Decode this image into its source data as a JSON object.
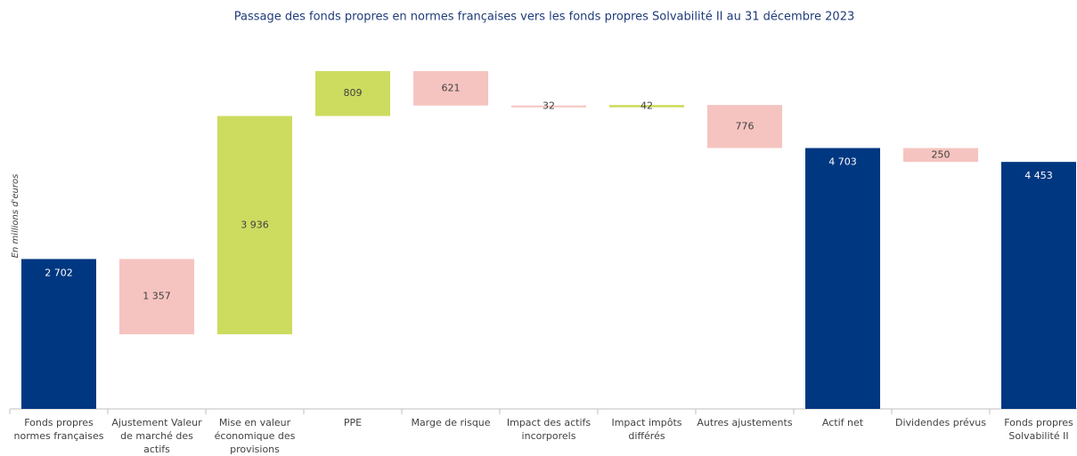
{
  "chart_data": {
    "type": "waterfall",
    "title": "Passage des fonds propres en normes françaises vers les fonds propres Solvabilité II au 31 décembre 2023",
    "y_label": "En millions d'euros",
    "categories": [
      "Fonds propres normes françaises",
      "Ajustement Valeur de marché des actifs",
      "Mise en valeur économique des provisions",
      "PPE",
      "Marge de risque",
      "Impact des actifs incorporels",
      "Impact impôts différés",
      "Autres ajustements",
      "Actif net",
      "Dividendes prévus",
      "Fonds propres Solvabilité II"
    ],
    "values": [
      2702,
      -1357,
      3936,
      809,
      -621,
      -32,
      42,
      -776,
      4703,
      -250,
      4453
    ],
    "value_labels": [
      "2 702",
      "1 357",
      "3 936",
      "809",
      "621",
      "32",
      "42",
      "776",
      "4 703",
      "250",
      "4 453"
    ],
    "measure": [
      "total",
      "relative",
      "relative",
      "relative",
      "relative",
      "relative",
      "relative",
      "relative",
      "total",
      "relative",
      "total"
    ],
    "colors": {
      "total": "#003781",
      "increase": "#cddc5f",
      "decrease": "#f6c4c0"
    }
  }
}
